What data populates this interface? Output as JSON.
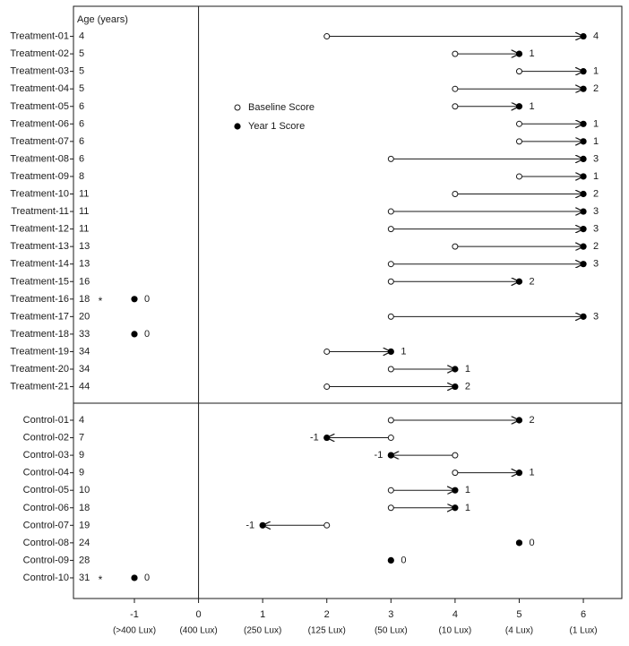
{
  "chart_data": {
    "type": "scatter",
    "age_header": "Age (years)",
    "legend": {
      "placement": "upper-left",
      "baseline_label": "Baseline Score",
      "year1_label": "Year 1 Score"
    },
    "x_ticks": [
      -1,
      0,
      1,
      2,
      3,
      4,
      5,
      6
    ],
    "x_tick_labels": [
      "-1",
      "0",
      "1",
      "2",
      "3",
      "4",
      "5",
      "6"
    ],
    "x_lux_labels": [
      "(>400 Lux)",
      "(400 Lux)",
      "(250 Lux)",
      "(125 Lux)",
      "(50 Lux)",
      "(10 Lux)",
      "(4 Lux)",
      "(1 Lux)"
    ],
    "xlim": [
      -1.95,
      6.6
    ],
    "star_symbol": "*",
    "groups": [
      {
        "name": "Treatment",
        "subjects": [
          {
            "label": "Treatment-01",
            "age": "4",
            "baseline": 2,
            "year1": 6,
            "change": "4"
          },
          {
            "label": "Treatment-02",
            "age": "5",
            "baseline": 4,
            "year1": 5,
            "change": "1"
          },
          {
            "label": "Treatment-03",
            "age": "5",
            "baseline": 5,
            "year1": 6,
            "change": "1"
          },
          {
            "label": "Treatment-04",
            "age": "5",
            "baseline": 4,
            "year1": 6,
            "change": "2"
          },
          {
            "label": "Treatment-05",
            "age": "6",
            "baseline": 4,
            "year1": 5,
            "change": "1"
          },
          {
            "label": "Treatment-06",
            "age": "6",
            "baseline": 5,
            "year1": 6,
            "change": "1"
          },
          {
            "label": "Treatment-07",
            "age": "6",
            "baseline": 5,
            "year1": 6,
            "change": "1"
          },
          {
            "label": "Treatment-08",
            "age": "6",
            "baseline": 3,
            "year1": 6,
            "change": "3"
          },
          {
            "label": "Treatment-09",
            "age": "8",
            "baseline": 5,
            "year1": 6,
            "change": "1"
          },
          {
            "label": "Treatment-10",
            "age": "11",
            "baseline": 4,
            "year1": 6,
            "change": "2"
          },
          {
            "label": "Treatment-11",
            "age": "11",
            "baseline": 3,
            "year1": 6,
            "change": "3"
          },
          {
            "label": "Treatment-12",
            "age": "11",
            "baseline": 3,
            "year1": 6,
            "change": "3"
          },
          {
            "label": "Treatment-13",
            "age": "13",
            "baseline": 4,
            "year1": 6,
            "change": "2"
          },
          {
            "label": "Treatment-14",
            "age": "13",
            "baseline": 3,
            "year1": 6,
            "change": "3"
          },
          {
            "label": "Treatment-15",
            "age": "16",
            "baseline": 3,
            "year1": 5,
            "change": "2"
          },
          {
            "label": "Treatment-16",
            "age": "18",
            "baseline": null,
            "year1": -1,
            "change": "0",
            "star": true
          },
          {
            "label": "Treatment-17",
            "age": "20",
            "baseline": 3,
            "year1": 6,
            "change": "3"
          },
          {
            "label": "Treatment-18",
            "age": "33",
            "baseline": null,
            "year1": -1,
            "change": "0"
          },
          {
            "label": "Treatment-19",
            "age": "34",
            "baseline": 2,
            "year1": 3,
            "change": "1"
          },
          {
            "label": "Treatment-20",
            "age": "34",
            "baseline": 3,
            "year1": 4,
            "change": "1"
          },
          {
            "label": "Treatment-21",
            "age": "44",
            "baseline": 2,
            "year1": 4,
            "change": "2"
          }
        ]
      },
      {
        "name": "Control",
        "subjects": [
          {
            "label": "Control-01",
            "age": "4",
            "baseline": 3,
            "year1": 5,
            "change": "2"
          },
          {
            "label": "Control-02",
            "age": "7",
            "baseline": 3,
            "year1": 2,
            "change": "-1"
          },
          {
            "label": "Control-03",
            "age": "9",
            "baseline": 4,
            "year1": 3,
            "change": "-1"
          },
          {
            "label": "Control-04",
            "age": "9",
            "baseline": 4,
            "year1": 5,
            "change": "1"
          },
          {
            "label": "Control-05",
            "age": "10",
            "baseline": 3,
            "year1": 4,
            "change": "1"
          },
          {
            "label": "Control-06",
            "age": "18",
            "baseline": 3,
            "year1": 4,
            "change": "1"
          },
          {
            "label": "Control-07",
            "age": "19",
            "baseline": 2,
            "year1": 1,
            "change": "-1"
          },
          {
            "label": "Control-08",
            "age": "24",
            "baseline": null,
            "year1": 5,
            "change": "0"
          },
          {
            "label": "Control-09",
            "age": "28",
            "baseline": null,
            "year1": 3,
            "change": "0"
          },
          {
            "label": "Control-10",
            "age": "31",
            "baseline": null,
            "year1": -1,
            "change": "0",
            "star": true
          }
        ]
      }
    ]
  }
}
